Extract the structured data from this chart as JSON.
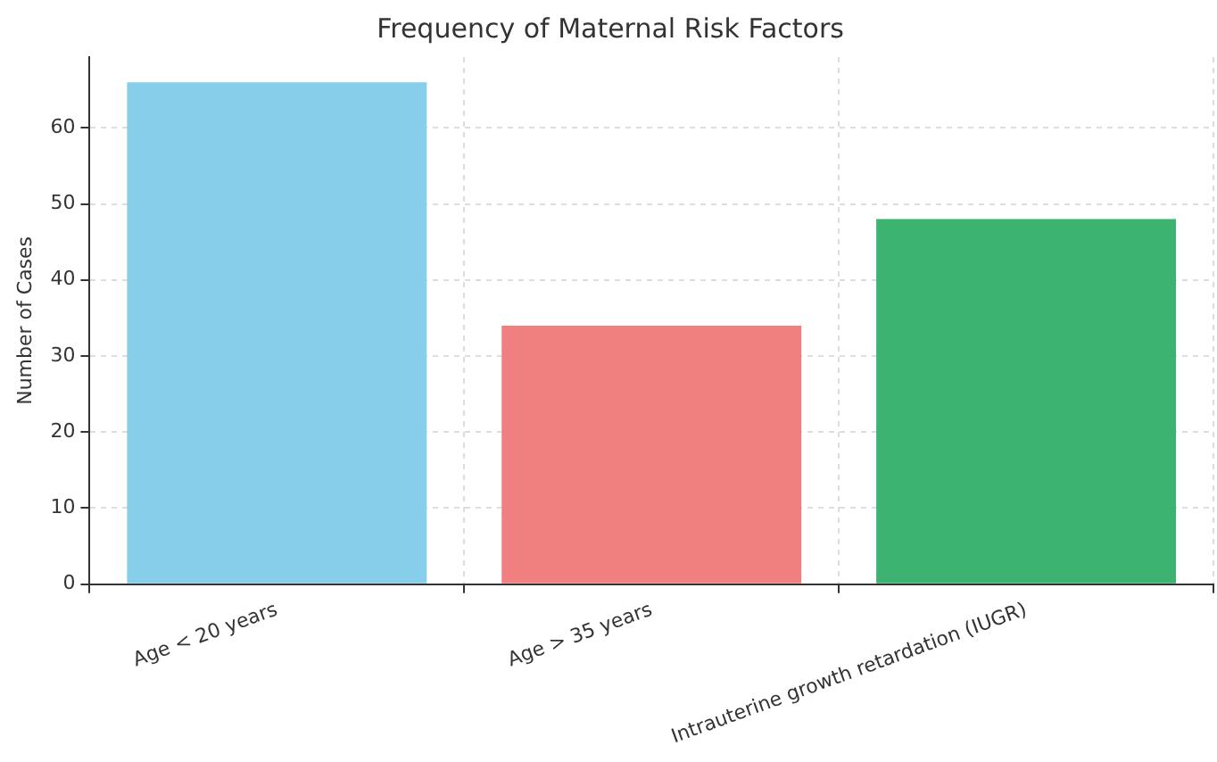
{
  "chart_data": {
    "type": "bar",
    "title": "Frequency of Maternal Risk Factors",
    "ylabel": "Number of Cases",
    "categories": [
      "Age < 20 years",
      "Age > 35 years",
      "Intrauterine growth retardation (IUGR)"
    ],
    "values": [
      66,
      34,
      48
    ],
    "colors": [
      "#87ceeb",
      "#f08080",
      "#3cb371"
    ],
    "ylim": [
      0,
      69.3
    ],
    "yticks": [
      0,
      10,
      20,
      30,
      40,
      50,
      60
    ],
    "grid": true
  }
}
